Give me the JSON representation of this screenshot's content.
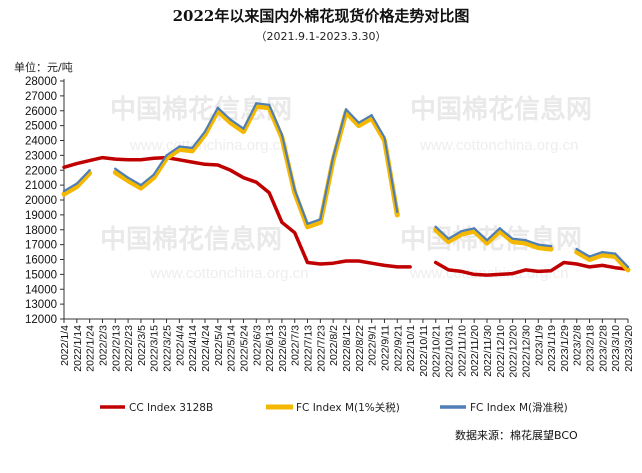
{
  "chart_data": {
    "type": "line",
    "title": "2022年以来国内外棉花现货价格走势对比图",
    "subtitle": "（2021.9.1-2023.3.30）",
    "unit_label": "单位：元/吨",
    "ylim": [
      12000,
      28000
    ],
    "ystep": 1000,
    "grid": false,
    "legend_position": "bottom",
    "source": "数据来源：棉花展望BCO",
    "watermark": {
      "name": "中国棉花信息网",
      "url": "www.cottonchina.org.cn"
    },
    "categories": [
      "2022/1/4",
      "2022/1/14",
      "2022/1/24",
      "2022/2/3",
      "2022/2/13",
      "2022/2/23",
      "2022/3/5",
      "2022/3/15",
      "2022/3/25",
      "2022/4/4",
      "2022/4/14",
      "2022/4/24",
      "2022/5/4",
      "2022/5/14",
      "2022/5/24",
      "2022/6/3",
      "2022/6/13",
      "2022/6/23",
      "2022/7/3",
      "2022/7/13",
      "2022/7/23",
      "2022/8/2",
      "2022/8/12",
      "2022/8/22",
      "2022/9/1",
      "2022/9/11",
      "2022/9/21",
      "2022/10/1",
      "2022/10/11",
      "2022/10/21",
      "2022/10/31",
      "2022/11/10",
      "2022/11/20",
      "2022/11/30",
      "2022/12/10",
      "2022/12/20",
      "2022/12/30",
      "2023/1/9",
      "2023/1/19",
      "2023/1/29",
      "2023/2/8",
      "2023/2/18",
      "2023/2/28",
      "2023/3/10",
      "2023/3/20"
    ],
    "series": [
      {
        "name": "CC Index 3128B",
        "color": "#c00000",
        "values": [
          22200,
          22450,
          22650,
          22850,
          22750,
          22700,
          22700,
          22800,
          22850,
          22700,
          22550,
          22400,
          22350,
          22000,
          21500,
          21200,
          20500,
          18500,
          17800,
          15800,
          15700,
          15750,
          15900,
          15900,
          15750,
          15600,
          15500,
          15500,
          null,
          15800,
          15300,
          15200,
          15000,
          14950,
          15000,
          15050,
          15300,
          15200,
          15250,
          15800,
          15700,
          15500,
          15600,
          15450,
          15350
        ]
      },
      {
        "name": "FC Index M(1%关税)",
        "color": "#f5b800",
        "values": [
          20400,
          20900,
          21800,
          null,
          21850,
          21300,
          20800,
          21500,
          22800,
          23400,
          23300,
          24400,
          26000,
          25200,
          24600,
          26300,
          26200,
          24200,
          20500,
          18200,
          18500,
          22700,
          25900,
          25000,
          25500,
          24000,
          19000,
          null,
          null,
          18000,
          17200,
          17700,
          17900,
          17100,
          17900,
          17200,
          17100,
          16800,
          16700,
          null,
          16500,
          16000,
          16300,
          16200,
          15300
        ]
      },
      {
        "name": "FC Index M(滑准税)",
        "color": "#4f7fb5",
        "values": [
          20600,
          21100,
          22000,
          null,
          22100,
          21500,
          21000,
          21700,
          23000,
          23600,
          23500,
          24600,
          26200,
          25400,
          24800,
          26500,
          26400,
          24400,
          20700,
          18400,
          18700,
          22900,
          26100,
          25200,
          25700,
          24200,
          19200,
          null,
          null,
          18200,
          17400,
          17900,
          18100,
          17300,
          18100,
          17400,
          17300,
          17000,
          16900,
          null,
          16700,
          16200,
          16500,
          16400,
          15500
        ]
      }
    ]
  }
}
